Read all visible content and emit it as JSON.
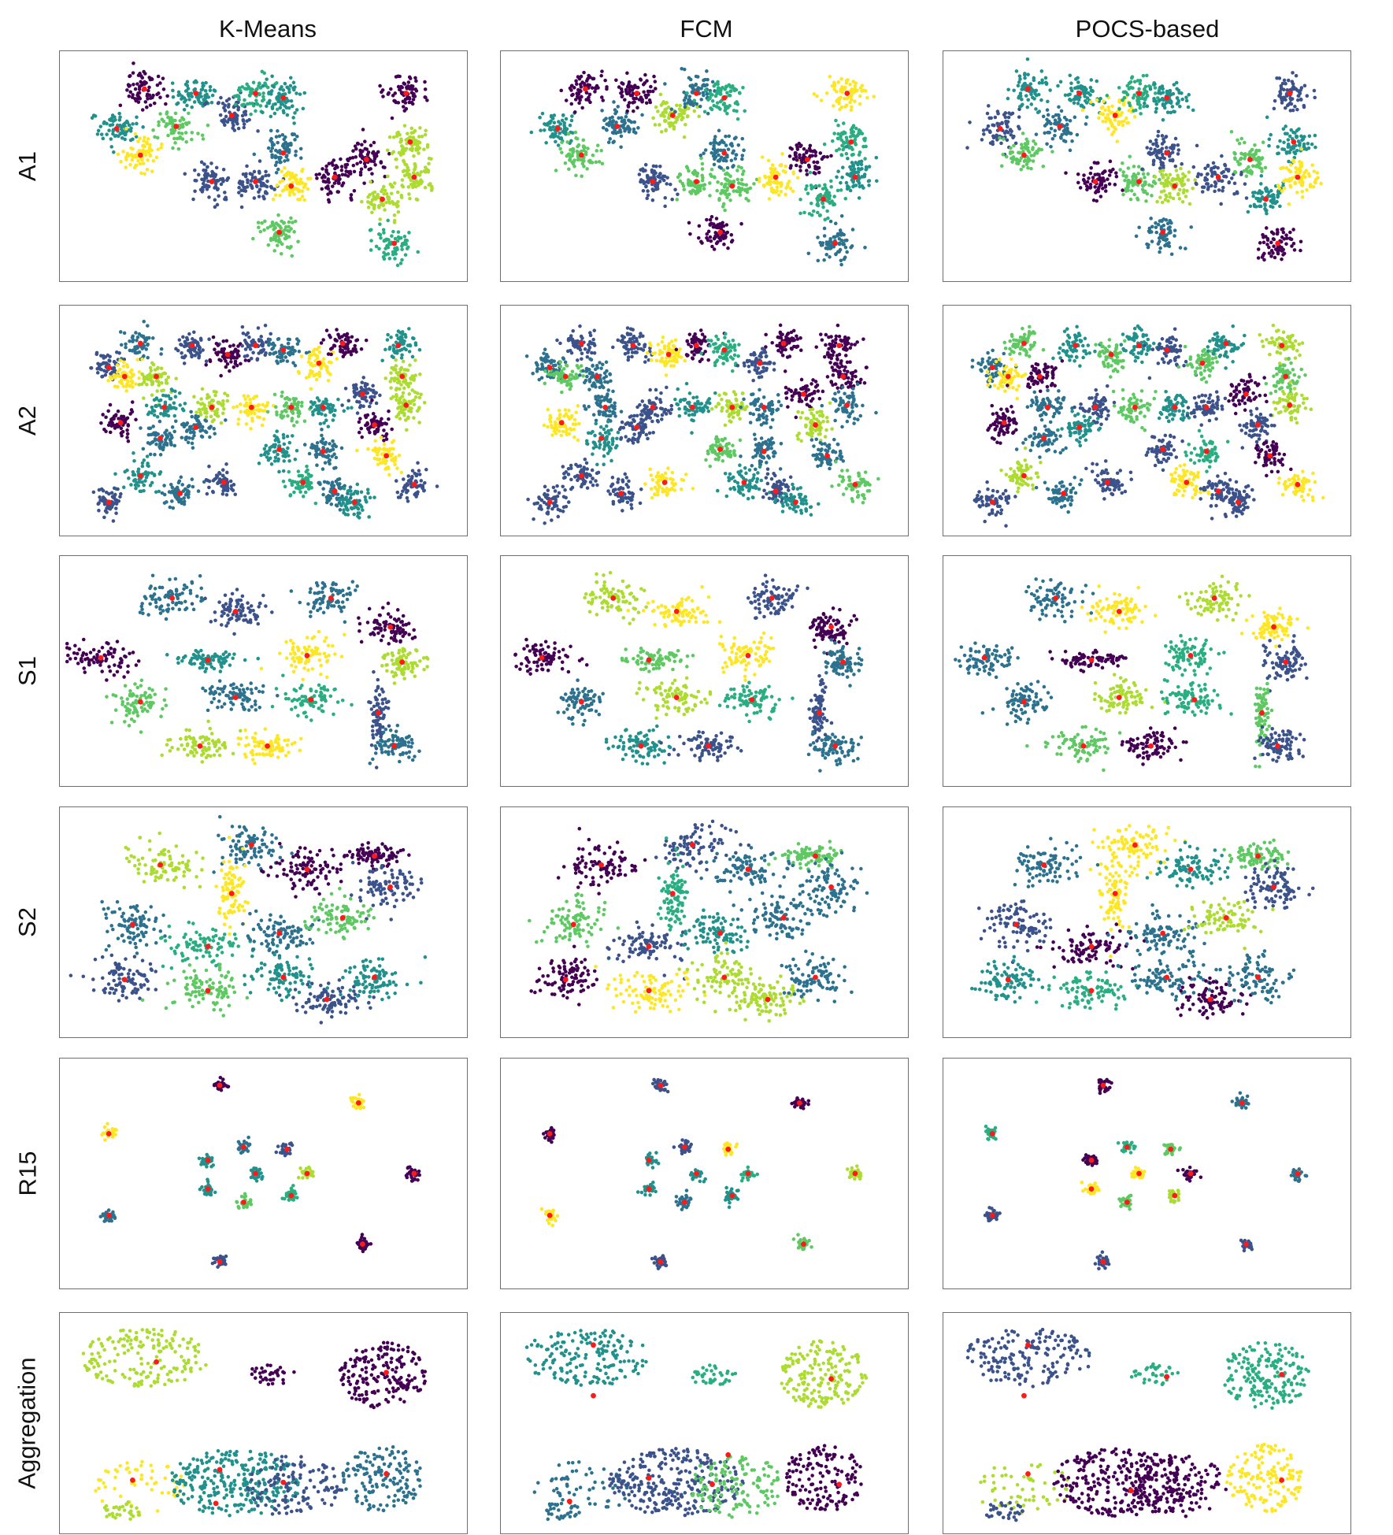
{
  "column_titles": [
    "K-Means",
    "FCM",
    "POCS-based"
  ],
  "row_labels": [
    "A1",
    "A2",
    "S1",
    "S2",
    "R15",
    "Aggregation"
  ],
  "colors": {
    "palette": [
      "#440154",
      "#3b528b",
      "#2c728e",
      "#21918c",
      "#28ae80",
      "#5ec962",
      "#addc30",
      "#fde725"
    ],
    "centroid": "#ff1a1a",
    "frame": "#6e6e6e"
  },
  "chart_data": {
    "type": "scatter",
    "grid": false,
    "axes_visible": false,
    "xlim": [
      0,
      1
    ],
    "ylim": [
      0,
      1
    ],
    "datasets": {
      "A1": {
        "spread": 0.045,
        "points_per_cluster": 70,
        "clusters": [
          [
            0.13,
            0.67
          ],
          [
            0.2,
            0.85
          ],
          [
            0.19,
            0.55
          ],
          [
            0.28,
            0.68
          ],
          [
            0.33,
            0.83
          ],
          [
            0.42,
            0.73
          ],
          [
            0.48,
            0.83
          ],
          [
            0.55,
            0.81
          ],
          [
            0.37,
            0.43
          ],
          [
            0.48,
            0.43
          ],
          [
            0.55,
            0.56
          ],
          [
            0.57,
            0.41
          ],
          [
            0.68,
            0.45
          ],
          [
            0.76,
            0.53
          ],
          [
            0.54,
            0.2
          ],
          [
            0.86,
            0.83
          ],
          [
            0.87,
            0.61
          ],
          [
            0.8,
            0.35
          ],
          [
            0.83,
            0.15
          ],
          [
            0.88,
            0.45
          ]
        ],
        "labels": {
          "K-Means": [
            3,
            0,
            7,
            5,
            3,
            1,
            4,
            3,
            1,
            1,
            2,
            7,
            0,
            0,
            5,
            0,
            6,
            6,
            4,
            6
          ],
          "FCM": [
            3,
            0,
            5,
            2,
            0,
            6,
            2,
            4,
            1,
            5,
            2,
            5,
            7,
            0,
            0,
            7,
            4,
            4,
            2,
            3
          ],
          "POCS-based": [
            1,
            3,
            5,
            2,
            3,
            7,
            4,
            3,
            0,
            5,
            1,
            6,
            1,
            5,
            2,
            1,
            3,
            3,
            0,
            7
          ]
        }
      },
      "A2": {
        "spread": 0.038,
        "points_per_cluster": 60,
        "clusters": [
          [
            0.11,
            0.74
          ],
          [
            0.19,
            0.85
          ],
          [
            0.15,
            0.7
          ],
          [
            0.32,
            0.84
          ],
          [
            0.23,
            0.7
          ],
          [
            0.41,
            0.8
          ],
          [
            0.48,
            0.84
          ],
          [
            0.55,
            0.82
          ],
          [
            0.64,
            0.76
          ],
          [
            0.7,
            0.85
          ],
          [
            0.84,
            0.84
          ],
          [
            0.85,
            0.7
          ],
          [
            0.14,
            0.49
          ],
          [
            0.25,
            0.56
          ],
          [
            0.37,
            0.56
          ],
          [
            0.47,
            0.56
          ],
          [
            0.57,
            0.56
          ],
          [
            0.65,
            0.56
          ],
          [
            0.75,
            0.62
          ],
          [
            0.86,
            0.57
          ],
          [
            0.24,
            0.42
          ],
          [
            0.33,
            0.47
          ],
          [
            0.54,
            0.37
          ],
          [
            0.65,
            0.36
          ],
          [
            0.78,
            0.48
          ],
          [
            0.81,
            0.34
          ],
          [
            0.19,
            0.25
          ],
          [
            0.29,
            0.17
          ],
          [
            0.4,
            0.22
          ],
          [
            0.6,
            0.22
          ],
          [
            0.68,
            0.18
          ],
          [
            0.73,
            0.13
          ],
          [
            0.88,
            0.21
          ],
          [
            0.11,
            0.13
          ]
        ],
        "labels": {
          "K-Means": [
            1,
            2,
            7,
            1,
            6,
            0,
            1,
            2,
            7,
            0,
            3,
            6,
            0,
            3,
            6,
            7,
            5,
            3,
            1,
            6,
            2,
            2,
            3,
            2,
            0,
            7,
            3,
            2,
            1,
            4,
            2,
            3,
            1,
            1
          ],
          "FCM": [
            2,
            1,
            5,
            1,
            2,
            7,
            0,
            4,
            1,
            0,
            0,
            0,
            7,
            2,
            1,
            3,
            6,
            2,
            0,
            2,
            3,
            1,
            5,
            2,
            6,
            2,
            1,
            1,
            7,
            3,
            1,
            3,
            5,
            1
          ],
          "POCS-based": [
            2,
            5,
            7,
            3,
            0,
            5,
            3,
            1,
            5,
            3,
            6,
            5,
            0,
            2,
            1,
            5,
            3,
            1,
            0,
            6,
            2,
            3,
            1,
            4,
            1,
            0,
            6,
            2,
            1,
            7,
            1,
            1,
            7,
            1
          ]
        }
      },
      "S1": {
        "spread": 0.045,
        "points_per_cluster": 80,
        "clusters": [
          [
            0.27,
            0.83,
            1.6,
            1.0
          ],
          [
            0.43,
            0.77,
            1.5,
            0.9
          ],
          [
            0.67,
            0.83,
            1.4,
            1.0
          ],
          [
            0.82,
            0.7,
            1.2,
            0.9
          ],
          [
            0.09,
            0.56,
            1.7,
            0.9
          ],
          [
            0.36,
            0.55,
            1.7,
            0.5
          ],
          [
            0.61,
            0.57,
            1.4,
            1.0
          ],
          [
            0.85,
            0.54,
            1.1,
            1.0
          ],
          [
            0.19,
            0.36,
            1.2,
            1.0
          ],
          [
            0.43,
            0.38,
            1.5,
            0.9
          ],
          [
            0.62,
            0.37,
            1.4,
            0.9
          ],
          [
            0.79,
            0.31,
            0.4,
            1.8
          ],
          [
            0.34,
            0.16,
            1.6,
            0.9
          ],
          [
            0.51,
            0.16,
            1.5,
            0.8
          ],
          [
            0.83,
            0.16,
            1.3,
            0.9
          ]
        ],
        "labels": {
          "K-Means": [
            2,
            1,
            2,
            0,
            0,
            3,
            7,
            6,
            5,
            2,
            4,
            1,
            6,
            7,
            2
          ],
          "FCM": [
            6,
            7,
            1,
            0,
            0,
            5,
            7,
            2,
            2,
            6,
            4,
            1,
            3,
            1,
            2
          ],
          "POCS-based": [
            2,
            7,
            6,
            7,
            2,
            0,
            4,
            1,
            2,
            6,
            4,
            5,
            5,
            0,
            1
          ]
        }
      },
      "S2": {
        "spread": 0.06,
        "points_per_cluster": 90,
        "clusters": [
          [
            0.24,
            0.76,
            1.3,
            0.9
          ],
          [
            0.47,
            0.85,
            1.3,
            0.9
          ],
          [
            0.61,
            0.74,
            1.3,
            0.9
          ],
          [
            0.78,
            0.8,
            1.2,
            0.5
          ],
          [
            0.82,
            0.66,
            1.2,
            1.0
          ],
          [
            0.42,
            0.63,
            0.5,
            1.4
          ],
          [
            0.17,
            0.49,
            1.2,
            1.0
          ],
          [
            0.36,
            0.39,
            1.5,
            0.8
          ],
          [
            0.54,
            0.45,
            1.3,
            0.8
          ],
          [
            0.7,
            0.52,
            1.3,
            0.8
          ],
          [
            0.15,
            0.24,
            1.2,
            0.9
          ],
          [
            0.36,
            0.19,
            1.4,
            0.9
          ],
          [
            0.55,
            0.25,
            1.4,
            0.9
          ],
          [
            0.66,
            0.15,
            1.3,
            0.8
          ],
          [
            0.78,
            0.25,
            1.2,
            0.9
          ]
        ],
        "labels": {
          "K-Means": [
            6,
            2,
            0,
            0,
            1,
            7,
            2,
            4,
            2,
            5,
            1,
            5,
            3,
            1,
            3
          ],
          "FCM": [
            0,
            1,
            2,
            5,
            2,
            4,
            5,
            1,
            3,
            2,
            0,
            7,
            6,
            6,
            2
          ],
          "POCS-based": [
            2,
            7,
            3,
            5,
            1,
            7,
            1,
            0,
            2,
            6,
            3,
            4,
            2,
            0,
            2
          ]
        }
      },
      "R15": {
        "spread": 0.016,
        "points_per_cluster": 30,
        "clusters": [
          [
            0.39,
            0.9
          ],
          [
            0.74,
            0.82
          ],
          [
            0.11,
            0.68
          ],
          [
            0.88,
            0.5
          ],
          [
            0.11,
            0.31
          ],
          [
            0.75,
            0.18
          ],
          [
            0.39,
            0.1
          ],
          [
            0.36,
            0.56
          ],
          [
            0.45,
            0.62
          ],
          [
            0.56,
            0.61
          ],
          [
            0.61,
            0.5
          ],
          [
            0.48,
            0.5
          ],
          [
            0.36,
            0.43
          ],
          [
            0.45,
            0.37
          ],
          [
            0.57,
            0.4
          ]
        ],
        "labels": {
          "K-Means": [
            0,
            7,
            7,
            0,
            2,
            0,
            1,
            3,
            2,
            1,
            6,
            3,
            3,
            5,
            4
          ],
          "FCM": [
            1,
            0,
            0,
            6,
            7,
            5,
            1,
            3,
            1,
            7,
            4,
            3,
            3,
            2,
            3
          ],
          "POCS-based": [
            0,
            2,
            4,
            2,
            1,
            1,
            1,
            0,
            4,
            5,
            0,
            7,
            7,
            5,
            6
          ]
        }
      },
      "Aggregation": {
        "clusters": [
          {
            "c": [
              0.2,
              0.81
            ],
            "r": [
              0.16,
              0.14
            ],
            "n": 170
          },
          {
            "c": [
              0.19,
              0.19
            ],
            "r": [
              0.12,
              0.13
            ],
            "n": 55
          },
          {
            "c": [
              0.14,
              0.08
            ],
            "r": [
              0.05,
              0.05
            ],
            "n": 30
          },
          {
            "c": [
              0.52,
              0.73
            ],
            "r": [
              0.06,
              0.05
            ],
            "n": 35
          },
          {
            "c": [
              0.8,
              0.73
            ],
            "r": [
              0.11,
              0.16
            ],
            "n": 180
          },
          {
            "c": [
              0.8,
              0.24
            ],
            "r": [
              0.1,
              0.16
            ],
            "n": 150
          },
          {
            "c": [
              0.43,
              0.22
            ],
            "r": [
              0.17,
              0.16
            ],
            "n": 280
          },
          {
            "c": [
              0.58,
              0.2
            ],
            "r": [
              0.12,
              0.15
            ],
            "n": 130
          }
        ],
        "centroids": {
          "K-Means": [
            [
              0.23,
              0.79
            ],
            [
              0.17,
              0.23
            ],
            [
              0.81,
              0.74
            ],
            [
              0.81,
              0.26
            ],
            [
              0.39,
              0.28
            ],
            [
              0.38,
              0.12
            ],
            [
              0.55,
              0.22
            ]
          ],
          "FCM": [
            [
              0.22,
              0.87
            ],
            [
              0.22,
              0.63
            ],
            [
              0.56,
              0.35
            ],
            [
              0.82,
              0.71
            ],
            [
              0.84,
              0.21
            ],
            [
              0.36,
              0.24
            ],
            [
              0.52,
              0.21
            ],
            [
              0.16,
              0.13
            ]
          ],
          "POCS-based": [
            [
              0.2,
              0.87
            ],
            [
              0.19,
              0.63
            ],
            [
              0.55,
              0.72
            ],
            [
              0.84,
              0.73
            ],
            [
              0.84,
              0.23
            ],
            [
              0.2,
              0.26
            ],
            [
              0.46,
              0.18
            ]
          ]
        },
        "labels": {
          "K-Means": [
            6,
            7,
            6,
            0,
            0,
            2,
            3,
            1
          ],
          "FCM": [
            3,
            2,
            2,
            4,
            6,
            0,
            1,
            5
          ],
          "POCS-based": [
            1,
            6,
            1,
            4,
            4,
            7,
            0,
            0
          ]
        }
      }
    }
  }
}
